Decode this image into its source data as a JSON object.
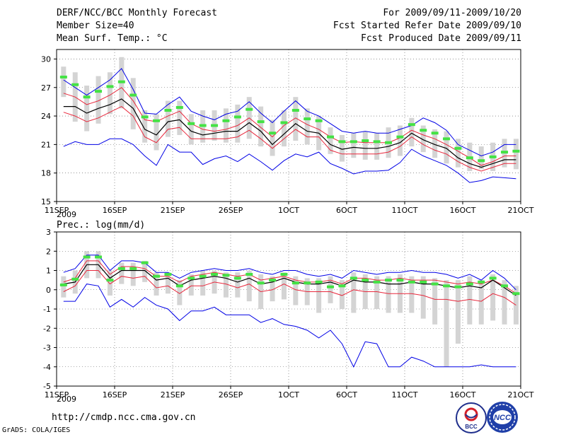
{
  "header": {
    "title": "DERF/NCC/BCC Monthly Forecast",
    "member": "Member Size=40",
    "variable1": "Mean Surf. Temp.: °C",
    "period": "For 2009/09/11-2009/10/20",
    "refer": "Fcst Started Refer Date 2009/09/10",
    "produced": "Fcst Produced Date 2009/09/11"
  },
  "footer": {
    "url": "http://cmdp.ncc.cma.gov.cn",
    "grads": "GrADS: COLA/IGES",
    "logo1": "BCC",
    "logo2": "NCC"
  },
  "colors": {
    "bar": "#d4d4d4",
    "median": "#000000",
    "quartile": "#e8283c",
    "extreme": "#0000e6",
    "ensemble": "#44e244"
  },
  "chart_data": [
    {
      "type": "line",
      "title": "Mean Surf. Temp.: °C",
      "ylim": [
        15,
        31
      ],
      "yticks": [
        15,
        18,
        21,
        24,
        27,
        30
      ],
      "xlim": [
        0,
        40
      ],
      "xtick_positions": [
        0,
        5,
        10,
        15,
        20,
        25,
        30,
        35,
        40
      ],
      "xtick_labels": [
        "11SEP",
        "16SEP",
        "21SEP",
        "26SEP",
        "1OCT",
        "6OCT",
        "11OCT",
        "16OCT",
        "21OCT"
      ],
      "xtick_sublabel": "2009",
      "grid": true,
      "series": [
        {
          "name": "max",
          "values": [
            27.8,
            27.0,
            26.2,
            27.0,
            27.8,
            29.0,
            26.8,
            24.3,
            24.2,
            25.2,
            26.0,
            24.5,
            24.0,
            23.6,
            24.2,
            24.5,
            25.5,
            24.3,
            23.3,
            24.5,
            25.6,
            24.5,
            24.0,
            23.2,
            22.4,
            22.2,
            22.4,
            22.2,
            22.2,
            22.6,
            23.0,
            23.8,
            23.3,
            22.5,
            21.0,
            20.4,
            19.8,
            20.2,
            21.0,
            21.0
          ]
        },
        {
          "name": "q3",
          "values": [
            26.4,
            26.0,
            25.2,
            25.6,
            26.2,
            27.0,
            25.6,
            23.6,
            23.4,
            24.0,
            24.5,
            23.2,
            22.6,
            22.4,
            22.6,
            23.0,
            23.8,
            22.8,
            21.8,
            23.0,
            23.8,
            23.1,
            22.6,
            21.8,
            21.2,
            21.3,
            21.2,
            21.2,
            21.2,
            21.7,
            22.5,
            22.0,
            21.6,
            21.0,
            20.3,
            19.6,
            18.8,
            19.2,
            19.8,
            19.8
          ]
        },
        {
          "name": "median",
          "values": [
            25.0,
            25.0,
            24.3,
            24.8,
            25.2,
            25.8,
            24.8,
            22.6,
            22.0,
            23.4,
            23.6,
            22.4,
            22.0,
            22.2,
            22.4,
            22.4,
            23.3,
            22.4,
            21.0,
            22.1,
            23.2,
            22.4,
            22.2,
            21.0,
            20.5,
            20.7,
            20.6,
            20.6,
            20.8,
            21.2,
            22.2,
            21.5,
            21.0,
            20.6,
            19.6,
            19.0,
            18.6,
            19.0,
            19.4,
            19.4
          ]
        },
        {
          "name": "q1",
          "values": [
            24.4,
            24.0,
            23.4,
            23.8,
            24.4,
            25.0,
            24.0,
            21.8,
            21.2,
            22.6,
            22.8,
            21.6,
            21.6,
            21.6,
            21.6,
            21.8,
            22.5,
            21.6,
            20.6,
            21.6,
            22.6,
            21.8,
            21.8,
            20.4,
            20.0,
            20.0,
            20.0,
            20.0,
            20.2,
            20.8,
            21.8,
            21.0,
            20.4,
            20.0,
            19.2,
            18.6,
            18.2,
            18.6,
            19.0,
            19.0
          ]
        },
        {
          "name": "min",
          "values": [
            20.8,
            21.3,
            21.0,
            21.0,
            21.6,
            21.6,
            21.0,
            19.8,
            18.8,
            21.0,
            20.2,
            20.2,
            18.9,
            19.5,
            19.8,
            19.2,
            20.0,
            19.2,
            18.3,
            19.3,
            20.0,
            19.7,
            20.2,
            19.0,
            18.5,
            17.9,
            18.2,
            18.2,
            18.3,
            19.1,
            20.5,
            19.8,
            19.3,
            18.8,
            18.0,
            17.0,
            17.2,
            17.6,
            17.5,
            17.4
          ]
        },
        {
          "name": "ensemble",
          "values": [
            28.1,
            27.3,
            26.0,
            26.6,
            27.1,
            27.6,
            26.2,
            23.9,
            23.5,
            24.6,
            24.9,
            23.2,
            23.0,
            23.0,
            23.5,
            23.9,
            24.7,
            23.4,
            22.2,
            23.3,
            24.6,
            23.7,
            23.5,
            21.8,
            21.3,
            21.3,
            21.4,
            21.3,
            21.2,
            21.8,
            23.1,
            22.5,
            22.2,
            21.6,
            20.6,
            19.6,
            19.3,
            19.7,
            20.2,
            20.3
          ]
        },
        {
          "name": "bar_top",
          "values": [
            29.2,
            28.6,
            27.2,
            28.2,
            28.6,
            30.2,
            28.0,
            24.6,
            24.2,
            25.6,
            25.6,
            24.2,
            24.6,
            24.6,
            24.8,
            25.2,
            26.0,
            25.0,
            23.6,
            24.6,
            26.0,
            24.8,
            24.0,
            22.8,
            22.0,
            22.2,
            22.4,
            22.2,
            22.8,
            23.0,
            23.8,
            23.0,
            22.6,
            22.4,
            21.6,
            21.2,
            20.8,
            21.2,
            21.6,
            21.6
          ]
        },
        {
          "name": "bar_bottom",
          "values": [
            26.0,
            23.4,
            22.4,
            23.2,
            24.2,
            24.8,
            22.6,
            21.2,
            20.4,
            21.8,
            22.0,
            21.0,
            21.2,
            21.4,
            21.2,
            21.2,
            21.6,
            20.8,
            19.8,
            20.8,
            21.4,
            21.0,
            20.4,
            20.0,
            19.2,
            19.6,
            19.4,
            19.4,
            19.6,
            19.8,
            20.8,
            20.2,
            19.6,
            19.0,
            18.6,
            18.2,
            18.4,
            18.2,
            18.6,
            18.4
          ]
        }
      ]
    },
    {
      "type": "line",
      "title": "Prec.: log(mm/d)",
      "ylim": [
        -5,
        3
      ],
      "yticks": [
        -5,
        -4,
        -3,
        -2,
        -1,
        0,
        1,
        2,
        3
      ],
      "xlim": [
        0,
        40
      ],
      "xtick_positions": [
        0,
        5,
        10,
        15,
        20,
        25,
        30,
        35,
        40
      ],
      "xtick_labels": [
        "11SEP",
        "16SEP",
        "21SEP",
        "26SEP",
        "1OCT",
        "6OCT",
        "11OCT",
        "16OCT",
        "21OCT"
      ],
      "xtick_sublabel": "2009",
      "grid": true,
      "series": [
        {
          "name": "max",
          "values": [
            0.9,
            1.1,
            1.8,
            1.8,
            1.0,
            1.5,
            1.5,
            1.4,
            0.9,
            0.9,
            0.6,
            0.9,
            1.0,
            1.1,
            1.0,
            1.0,
            1.1,
            0.9,
            0.8,
            1.0,
            1.0,
            0.8,
            0.7,
            0.8,
            0.6,
            1.0,
            0.9,
            0.8,
            0.9,
            0.9,
            1.0,
            0.9,
            0.9,
            0.8,
            0.6,
            0.8,
            0.5,
            1.0,
            0.6,
            0.0
          ]
        },
        {
          "name": "q3",
          "values": [
            0.4,
            0.6,
            1.5,
            1.5,
            0.8,
            1.2,
            1.2,
            1.1,
            0.7,
            0.7,
            0.4,
            0.7,
            0.8,
            0.9,
            0.8,
            0.7,
            0.8,
            0.5,
            0.6,
            0.7,
            0.5,
            0.4,
            0.4,
            0.5,
            0.3,
            0.6,
            0.6,
            0.5,
            0.5,
            0.6,
            0.5,
            0.5,
            0.5,
            0.4,
            0.3,
            0.4,
            0.3,
            0.5,
            0.2,
            -0.2
          ]
        },
        {
          "name": "median",
          "values": [
            0.3,
            0.4,
            1.3,
            1.3,
            0.6,
            1.0,
            1.0,
            1.0,
            0.5,
            0.6,
            0.2,
            0.5,
            0.6,
            0.7,
            0.6,
            0.4,
            0.6,
            0.3,
            0.4,
            0.6,
            0.4,
            0.3,
            0.3,
            0.4,
            0.2,
            0.5,
            0.4,
            0.4,
            0.3,
            0.3,
            0.4,
            0.3,
            0.3,
            0.2,
            0.1,
            0.2,
            0.1,
            0.5,
            0.1,
            -0.3
          ]
        },
        {
          "name": "q1",
          "values": [
            -0.1,
            0.2,
            1.0,
            1.0,
            0.3,
            0.7,
            0.6,
            0.7,
            0.1,
            0.2,
            -0.2,
            0.2,
            0.2,
            0.4,
            0.3,
            0.1,
            0.3,
            -0.1,
            0.0,
            0.3,
            0.0,
            -0.1,
            -0.1,
            -0.1,
            -0.3,
            0.0,
            -0.1,
            -0.1,
            -0.2,
            -0.2,
            -0.2,
            -0.3,
            -0.5,
            -0.5,
            -0.6,
            -0.5,
            -0.6,
            -0.2,
            -0.4,
            -0.8
          ]
        },
        {
          "name": "min",
          "values": [
            -0.6,
            -0.6,
            0.3,
            0.2,
            -0.9,
            -0.5,
            -0.9,
            -0.4,
            -0.8,
            -1.0,
            -1.6,
            -1.1,
            -1.1,
            -0.9,
            -1.3,
            -1.3,
            -1.3,
            -1.7,
            -1.5,
            -1.8,
            -1.9,
            -2.1,
            -2.5,
            -2.1,
            -2.8,
            -4.0,
            -2.7,
            -2.8,
            -4.0,
            -4.0,
            -3.5,
            -3.7,
            -4.0,
            -4.0,
            -4.0,
            -4.0,
            -3.9,
            -4.0,
            -4.0,
            -4.0
          ]
        },
        {
          "name": "ensemble",
          "values": [
            0.25,
            0.55,
            1.7,
            1.7,
            0.5,
            1.1,
            1.1,
            1.4,
            0.7,
            0.8,
            0.2,
            0.6,
            0.7,
            0.8,
            0.75,
            0.6,
            0.8,
            0.35,
            0.5,
            0.8,
            0.35,
            0.35,
            0.4,
            0.15,
            0.2,
            0.6,
            0.5,
            0.4,
            0.5,
            0.5,
            0.4,
            0.4,
            0.3,
            0.2,
            0.15,
            0.3,
            0.4,
            0.6,
            0.2,
            -0.2
          ]
        },
        {
          "name": "bar_top",
          "values": [
            0.7,
            1.0,
            2.0,
            2.0,
            1.0,
            1.4,
            1.4,
            1.5,
            0.9,
            0.9,
            0.5,
            0.8,
            1.0,
            1.0,
            0.9,
            0.9,
            1.0,
            0.8,
            0.7,
            0.9,
            0.7,
            0.6,
            0.6,
            0.7,
            0.5,
            0.9,
            0.8,
            0.7,
            0.7,
            0.8,
            0.7,
            0.7,
            0.6,
            0.5,
            0.5,
            0.7,
            0.5,
            0.8,
            0.5,
            0.2
          ]
        },
        {
          "name": "bar_bottom",
          "values": [
            -0.4,
            -0.2,
            0.6,
            0.6,
            -0.3,
            0.3,
            0.2,
            0.4,
            -0.3,
            -0.2,
            -0.8,
            -0.3,
            -0.3,
            -0.2,
            -0.4,
            -0.4,
            -0.6,
            -1.0,
            -0.6,
            -0.5,
            -0.8,
            -0.8,
            -1.2,
            -0.7,
            -1.0,
            -1.2,
            -1.0,
            -1.0,
            -1.2,
            -1.2,
            -1.2,
            -1.5,
            -1.8,
            -4.0,
            -2.8,
            -1.8,
            -1.8,
            -1.6,
            -1.8,
            -1.8
          ]
        }
      ]
    }
  ]
}
